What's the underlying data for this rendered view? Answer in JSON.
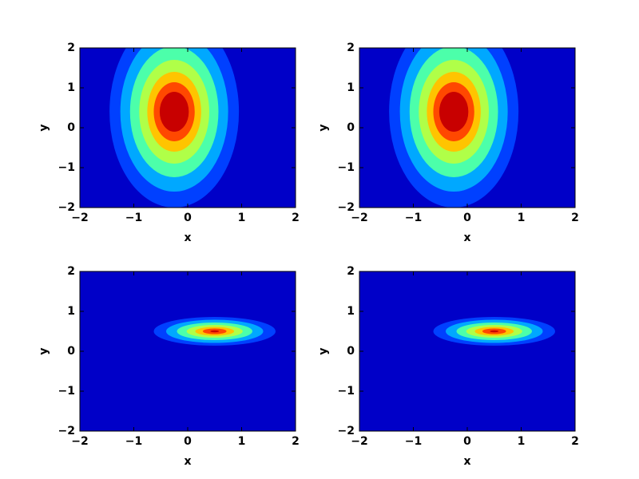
{
  "chart_data": [
    {
      "type": "contour",
      "xlabel": "x",
      "ylabel": "y",
      "xlim": [
        -2,
        2
      ],
      "ylim": [
        -2,
        2
      ],
      "xticks": [
        {
          "value": -2,
          "label": "−2"
        },
        {
          "value": -1,
          "label": "−1"
        },
        0,
        1,
        2
      ],
      "yticks": [
        {
          "value": -2,
          "label": "−2"
        },
        {
          "value": -1,
          "label": "−1"
        },
        0,
        1,
        2
      ],
      "background": "#0000c8",
      "levels": [
        {
          "color": "#0040ff",
          "cx": -0.25,
          "cy": 0.4,
          "rx": 1.2,
          "ry": 2.4
        },
        {
          "color": "#00a8ff",
          "cx": -0.25,
          "cy": 0.4,
          "rx": 1.0,
          "ry": 2.0
        },
        {
          "color": "#4cffaa",
          "cx": -0.25,
          "cy": 0.4,
          "rx": 0.82,
          "ry": 1.64
        },
        {
          "color": "#b0ff48",
          "cx": -0.25,
          "cy": 0.4,
          "rx": 0.65,
          "ry": 1.3
        },
        {
          "color": "#ffc400",
          "cx": -0.25,
          "cy": 0.4,
          "rx": 0.5,
          "ry": 1.0
        },
        {
          "color": "#ff4800",
          "cx": -0.25,
          "cy": 0.4,
          "rx": 0.38,
          "ry": 0.74
        },
        {
          "color": "#c80000",
          "cx": -0.25,
          "cy": 0.4,
          "rx": 0.27,
          "ry": 0.5
        }
      ]
    },
    {
      "type": "contour",
      "xlabel": "x",
      "ylabel": "y",
      "xlim": [
        -2,
        2
      ],
      "ylim": [
        -2,
        2
      ],
      "xticks": [
        {
          "value": -2,
          "label": "−2"
        },
        {
          "value": -1,
          "label": "−1"
        },
        0,
        1,
        2
      ],
      "yticks": [
        {
          "value": -2,
          "label": "−2"
        },
        {
          "value": -1,
          "label": "−1"
        },
        0,
        1,
        2
      ],
      "background": "#0000c8",
      "levels": [
        {
          "color": "#0040ff",
          "cx": -0.25,
          "cy": 0.4,
          "rx": 1.2,
          "ry": 2.4
        },
        {
          "color": "#00a8ff",
          "cx": -0.25,
          "cy": 0.4,
          "rx": 1.0,
          "ry": 2.0
        },
        {
          "color": "#4cffaa",
          "cx": -0.25,
          "cy": 0.4,
          "rx": 0.82,
          "ry": 1.64
        },
        {
          "color": "#b0ff48",
          "cx": -0.25,
          "cy": 0.4,
          "rx": 0.65,
          "ry": 1.3
        },
        {
          "color": "#ffc400",
          "cx": -0.25,
          "cy": 0.4,
          "rx": 0.5,
          "ry": 1.0
        },
        {
          "color": "#ff4800",
          "cx": -0.25,
          "cy": 0.4,
          "rx": 0.38,
          "ry": 0.74
        },
        {
          "color": "#c80000",
          "cx": -0.25,
          "cy": 0.4,
          "rx": 0.27,
          "ry": 0.5
        }
      ]
    },
    {
      "type": "contour",
      "xlabel": "x",
      "ylabel": "y",
      "xlim": [
        -2,
        2
      ],
      "ylim": [
        -2,
        2
      ],
      "xticks": [
        {
          "value": -2,
          "label": "−2"
        },
        {
          "value": -1,
          "label": "−1"
        },
        0,
        1,
        2
      ],
      "yticks": [
        {
          "value": -2,
          "label": "−2"
        },
        {
          "value": -1,
          "label": "−1"
        },
        0,
        1,
        2
      ],
      "background": "#0000c8",
      "levels": [
        {
          "color": "#0040ff",
          "cx": 0.5,
          "cy": 0.5,
          "rx": 1.13,
          "ry": 0.36
        },
        {
          "color": "#00a8ff",
          "cx": 0.5,
          "cy": 0.5,
          "rx": 0.9,
          "ry": 0.29
        },
        {
          "color": "#4cffaa",
          "cx": 0.5,
          "cy": 0.5,
          "rx": 0.7,
          "ry": 0.22
        },
        {
          "color": "#b0ff48",
          "cx": 0.5,
          "cy": 0.5,
          "rx": 0.52,
          "ry": 0.16
        },
        {
          "color": "#ffc400",
          "cx": 0.5,
          "cy": 0.5,
          "rx": 0.36,
          "ry": 0.11
        },
        {
          "color": "#ff4800",
          "cx": 0.5,
          "cy": 0.5,
          "rx": 0.22,
          "ry": 0.07
        },
        {
          "color": "#c80000",
          "cx": 0.5,
          "cy": 0.5,
          "rx": 0.08,
          "ry": 0.025
        }
      ]
    },
    {
      "type": "contour",
      "xlabel": "x",
      "ylabel": "y",
      "xlim": [
        -2,
        2
      ],
      "ylim": [
        -2,
        2
      ],
      "xticks": [
        {
          "value": -2,
          "label": "−2"
        },
        {
          "value": -1,
          "label": "−1"
        },
        0,
        1,
        2
      ],
      "yticks": [
        {
          "value": -2,
          "label": "−2"
        },
        {
          "value": -1,
          "label": "−1"
        },
        0,
        1,
        2
      ],
      "background": "#0000c8",
      "levels": [
        {
          "color": "#0040ff",
          "cx": 0.5,
          "cy": 0.5,
          "rx": 1.13,
          "ry": 0.36
        },
        {
          "color": "#00a8ff",
          "cx": 0.5,
          "cy": 0.5,
          "rx": 0.9,
          "ry": 0.29
        },
        {
          "color": "#4cffaa",
          "cx": 0.5,
          "cy": 0.5,
          "rx": 0.7,
          "ry": 0.22
        },
        {
          "color": "#b0ff48",
          "cx": 0.5,
          "cy": 0.5,
          "rx": 0.52,
          "ry": 0.16
        },
        {
          "color": "#ffc400",
          "cx": 0.5,
          "cy": 0.5,
          "rx": 0.36,
          "ry": 0.11
        },
        {
          "color": "#ff4800",
          "cx": 0.5,
          "cy": 0.5,
          "rx": 0.22,
          "ry": 0.07
        },
        {
          "color": "#c80000",
          "cx": 0.5,
          "cy": 0.5,
          "rx": 0.08,
          "ry": 0.025
        }
      ]
    }
  ]
}
